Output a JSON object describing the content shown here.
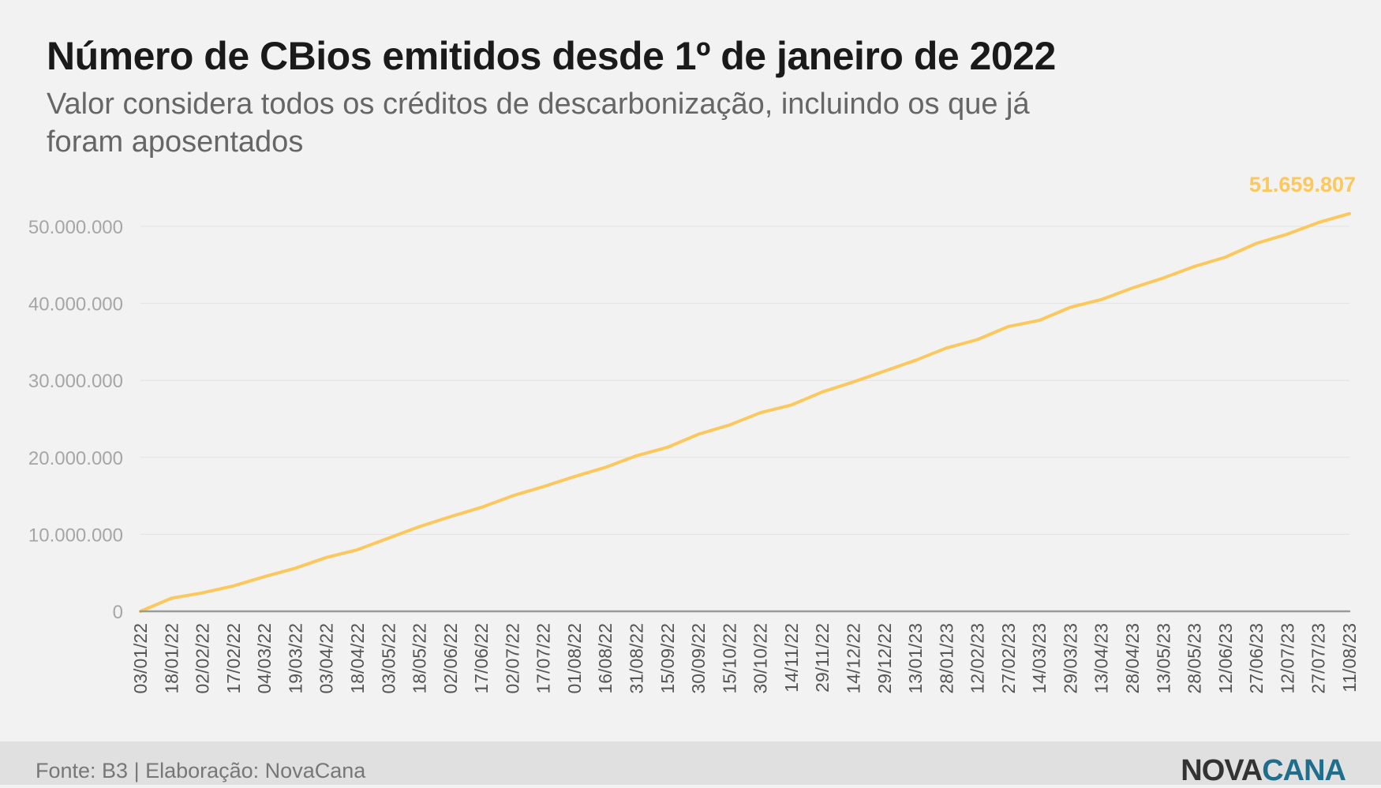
{
  "header": {
    "title": "Número de CBios emitidos desde 1º de janeiro de 2022",
    "subtitle": "Valor considera todos os créditos de descarbonização, incluindo os que já foram aposentados"
  },
  "footer": {
    "source": "Fonte: B3 | Elaboração: NovaCana",
    "logo_part1": "NOVA",
    "logo_part2": "CANA"
  },
  "chart_data": {
    "type": "line",
    "title": "Número de CBios emitidos desde 1º de janeiro de 2022",
    "xlabel": "",
    "ylabel": "",
    "ylim": [
      0,
      50000000
    ],
    "grid": true,
    "y_ticks": [
      "0",
      "10.000.000",
      "20.000.000",
      "30.000.000",
      "40.000.000",
      "50.000.000"
    ],
    "categories": [
      "03/01/22",
      "18/01/22",
      "02/02/22",
      "17/02/22",
      "04/03/22",
      "19/03/22",
      "03/04/22",
      "18/04/22",
      "03/05/22",
      "18/05/22",
      "02/06/22",
      "17/06/22",
      "02/07/22",
      "17/07/22",
      "01/08/22",
      "16/08/22",
      "31/08/22",
      "15/09/22",
      "30/09/22",
      "15/10/22",
      "30/10/22",
      "14/11/22",
      "29/11/22",
      "14/12/22",
      "29/12/22",
      "13/01/23",
      "28/01/23",
      "12/02/23",
      "27/02/23",
      "14/03/23",
      "29/03/23",
      "13/04/23",
      "28/04/23",
      "13/05/23",
      "28/05/23",
      "12/06/23",
      "27/06/23",
      "12/07/23",
      "27/07/23",
      "11/08/23"
    ],
    "series": [
      {
        "color": "#fcc85e",
        "values": [
          0,
          1700000,
          2400000,
          3300000,
          4500000,
          5600000,
          7000000,
          8000000,
          9500000,
          11000000,
          12300000,
          13500000,
          15000000,
          16200000,
          17500000,
          18700000,
          20200000,
          21300000,
          23000000,
          24200000,
          25800000,
          26800000,
          28500000,
          29800000,
          31200000,
          32600000,
          34200000,
          35300000,
          37000000,
          37800000,
          39500000,
          40500000,
          42000000,
          43300000,
          44800000,
          46000000,
          47800000,
          49000000,
          50500000,
          51659807
        ]
      },
      {
        "color": "#9a9a9a",
        "values": [
          0,
          0,
          0,
          0,
          0,
          0,
          0,
          0,
          0,
          0,
          0,
          0,
          0,
          0,
          0,
          0,
          0,
          0,
          0,
          0,
          0,
          0,
          0,
          0,
          0,
          0,
          0,
          0,
          0,
          0,
          0,
          0,
          0,
          0,
          0,
          0,
          0,
          0,
          0,
          0
        ]
      }
    ],
    "annotations": [
      {
        "text": "51.659.807",
        "color": "#fcc85e",
        "at": "last-point"
      }
    ]
  }
}
